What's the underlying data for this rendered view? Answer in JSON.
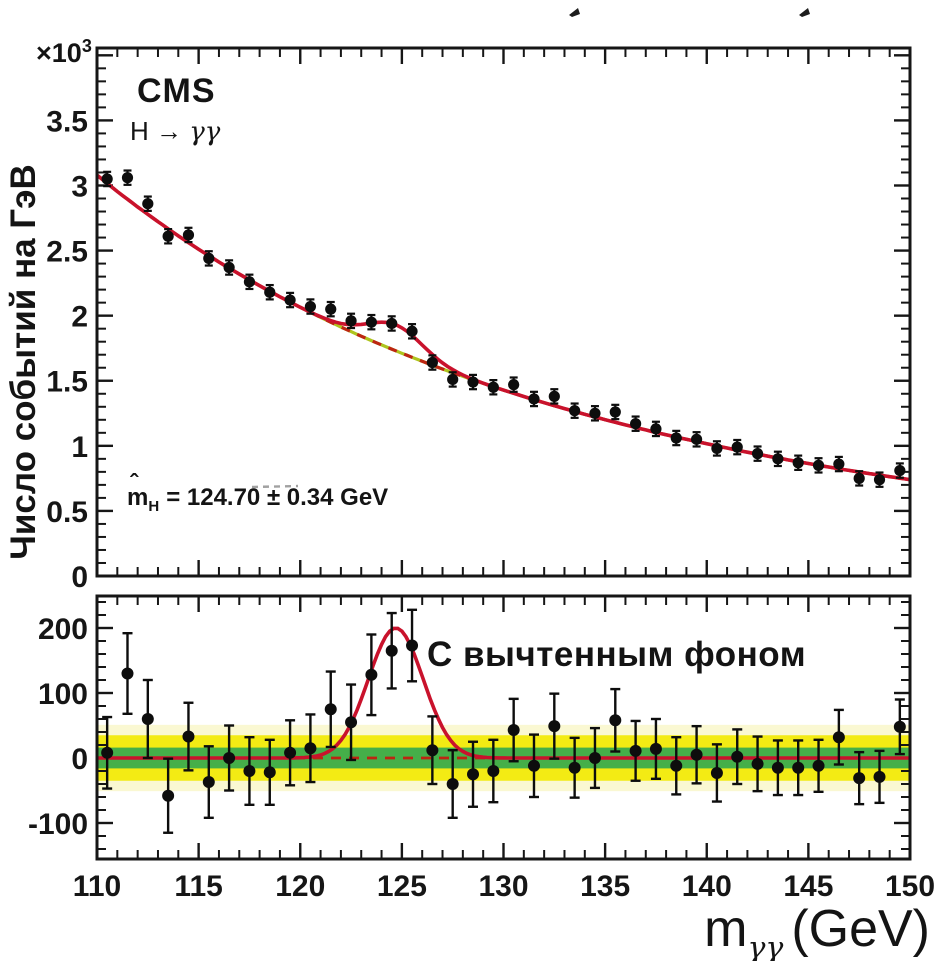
{
  "texts": {
    "cms": "CMS",
    "process_prefix": "H → ",
    "process_gammas": "γγ",
    "scale_base": "×10",
    "scale_exp": "3",
    "y_title_top": "Число событий на ГэВ",
    "mass_m": "m",
    "mass_hat": "ˆ",
    "mass_sub": "H",
    "mass_rest": "= 124.70 ± 0.34 GeV",
    "subtracted_label": "С вычтенным фоном",
    "x_title_m": "m",
    "x_title_sub": "γγ",
    "x_title_unit": "(GeV)"
  },
  "colors": {
    "ink": "#161616",
    "marker": "#0d0d0d",
    "red": "#c9122c",
    "dash_red": "#bd2512",
    "dash_under": "#aec41e",
    "band_yellow": "#f2ea0a",
    "band_green": "#45af49",
    "band_pale": "#f6f2a6",
    "artifact_gray": "#8a8a8a"
  },
  "axes": {
    "x": {
      "ticks": [
        "110",
        "115",
        "120",
        "125",
        "130",
        "135",
        "140",
        "145",
        "150"
      ],
      "minor_step_gev": 1,
      "major_step_gev": 5
    },
    "y_top": {
      "ticks": [
        "0",
        "0.5",
        "1",
        "1.5",
        "2",
        "2.5",
        "3",
        "3.5"
      ],
      "multiplier": "×10³",
      "minor_step": 0.1,
      "major_step": 0.5
    },
    "y_bottom": {
      "ticks": [
        "-100",
        "0",
        "100",
        "200"
      ],
      "minor_step": 20,
      "major_step": 100
    }
  },
  "chart_data": [
    {
      "type": "scatter",
      "panel": "top",
      "title": "CMS",
      "subtitle": "H → γγ",
      "annotation": "m̂_H = 124.70 ± 0.34 GeV",
      "ylabel": "Число событий на ГэВ",
      "y_unit": "×10³",
      "xlim": [
        110,
        150
      ],
      "ylim": [
        0,
        4.06
      ],
      "x": [
        110.5,
        111.5,
        112.5,
        113.5,
        114.5,
        115.5,
        116.5,
        117.5,
        118.5,
        119.5,
        120.5,
        121.5,
        122.5,
        123.5,
        124.5,
        125.5,
        126.5,
        127.5,
        128.5,
        129.5,
        130.5,
        131.5,
        132.5,
        133.5,
        134.5,
        135.5,
        136.5,
        137.5,
        138.5,
        139.5,
        140.5,
        141.5,
        142.5,
        143.5,
        144.5,
        145.5,
        146.5,
        147.5,
        148.5,
        149.5
      ],
      "y": [
        3.05,
        3.06,
        2.86,
        2.61,
        2.62,
        2.44,
        2.37,
        2.26,
        2.18,
        2.12,
        2.07,
        2.05,
        1.96,
        1.95,
        1.94,
        1.88,
        1.64,
        1.51,
        1.49,
        1.45,
        1.47,
        1.36,
        1.38,
        1.27,
        1.25,
        1.26,
        1.17,
        1.13,
        1.06,
        1.05,
        0.98,
        0.99,
        0.94,
        0.9,
        0.87,
        0.85,
        0.86,
        0.75,
        0.74,
        0.81
      ],
      "yerr": 0.055,
      "background_curve": {
        "style": "dashed",
        "x_start": 110,
        "x_step": 1,
        "values": [
          3.08,
          2.954,
          2.835,
          2.722,
          2.613,
          2.51,
          2.412,
          2.319,
          2.23,
          2.145,
          2.064,
          1.987,
          1.913,
          1.842,
          1.775,
          1.711,
          1.649,
          1.59,
          1.534,
          1.48,
          1.428,
          1.379,
          1.331,
          1.286,
          1.242,
          1.201,
          1.161,
          1.122,
          1.085,
          1.05,
          1.016,
          0.983,
          0.951,
          0.921,
          0.892,
          0.864,
          0.837,
          0.811,
          0.787,
          0.763,
          0.74
        ]
      },
      "signal_fit": {
        "style": "solid",
        "amplitude": 0.2,
        "mean": 124.7,
        "sigma": 1.35
      }
    },
    {
      "type": "scatter",
      "panel": "bottom",
      "label": "С вычтенным фоном",
      "xlim": [
        110,
        150
      ],
      "ylim": [
        -155,
        249
      ],
      "x": [
        110.5,
        111.5,
        112.5,
        113.5,
        114.5,
        115.5,
        116.5,
        117.5,
        118.5,
        119.5,
        120.5,
        121.5,
        122.5,
        123.5,
        124.5,
        125.5,
        126.5,
        127.5,
        128.5,
        129.5,
        130.5,
        131.5,
        132.5,
        133.5,
        134.5,
        135.5,
        136.5,
        137.5,
        138.5,
        139.5,
        140.5,
        141.5,
        142.5,
        143.5,
        144.5,
        145.5,
        146.5,
        147.5,
        148.5,
        149.5
      ],
      "y": [
        8,
        130,
        60,
        -58,
        33,
        -37,
        0,
        -20,
        -22,
        8,
        15,
        75,
        55,
        128,
        165,
        173,
        12,
        -40,
        -25,
        -20,
        43,
        -12,
        49,
        -15,
        0,
        58,
        11,
        14,
        -12,
        5,
        -23,
        2,
        -9,
        -15,
        -15,
        -12,
        32,
        -31,
        -29,
        48
      ],
      "yerr": [
        55,
        62,
        60,
        57,
        52,
        55,
        50,
        52,
        50,
        50,
        52,
        58,
        58,
        62,
        58,
        55,
        52,
        52,
        50,
        48,
        48,
        48,
        50,
        46,
        46,
        48,
        46,
        46,
        44,
        44,
        44,
        42,
        42,
        42,
        42,
        40,
        42,
        40,
        40,
        42
      ],
      "fit": {
        "style": "solid",
        "amplitude": 200,
        "mean": 124.7,
        "sigma": 1.35,
        "baseline": 0
      },
      "zero_line": {
        "style": "dashed",
        "value": 0
      },
      "bands": {
        "green_halfwidth": 16,
        "yellow_halfwidth": 35,
        "pale_halfwidth": 51
      }
    }
  ]
}
